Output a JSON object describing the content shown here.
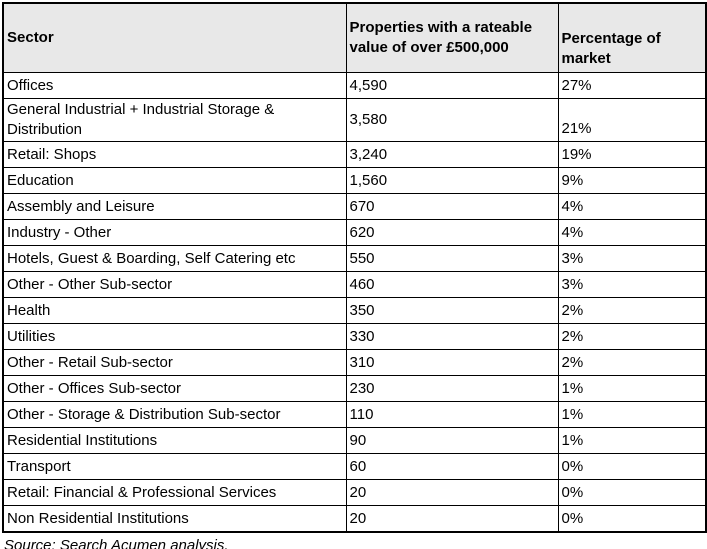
{
  "chart_data": {
    "type": "table",
    "title": "",
    "columns": [
      "Sector",
      "Properties with a rateable value of over £500,000",
      "Percentage of market"
    ],
    "rows": [
      [
        "Offices",
        "4,590",
        "27%"
      ],
      [
        "General Industrial + Industrial Storage & Distribution",
        "3,580",
        "21%"
      ],
      [
        "Retail: Shops",
        "3,240",
        "19%"
      ],
      [
        "Education",
        "1,560",
        "9%"
      ],
      [
        "Assembly and Leisure",
        "670",
        "4%"
      ],
      [
        "Industry - Other",
        "620",
        "4%"
      ],
      [
        "Hotels, Guest & Boarding, Self Catering etc",
        "550",
        "3%"
      ],
      [
        "Other - Other Sub-sector",
        "460",
        "3%"
      ],
      [
        "Health",
        "350",
        "2%"
      ],
      [
        "Utilities",
        "330",
        "2%"
      ],
      [
        "Other - Retail Sub-sector",
        "310",
        "2%"
      ],
      [
        "Other - Offices Sub-sector",
        "230",
        "1%"
      ],
      [
        "Other - Storage & Distribution Sub-sector",
        "110",
        "1%"
      ],
      [
        "Residential Institutions",
        "90",
        "1%"
      ],
      [
        "Transport",
        "60",
        "0%"
      ],
      [
        "Retail: Financial & Professional Services",
        "20",
        "0%"
      ],
      [
        "Non Residential Institutions",
        "20",
        "0%"
      ]
    ],
    "source_note": "Source: Search Acumen analysis.",
    "layout": {
      "header_background": "#e8e8e8",
      "border_color": "#000000",
      "grid": true
    }
  }
}
